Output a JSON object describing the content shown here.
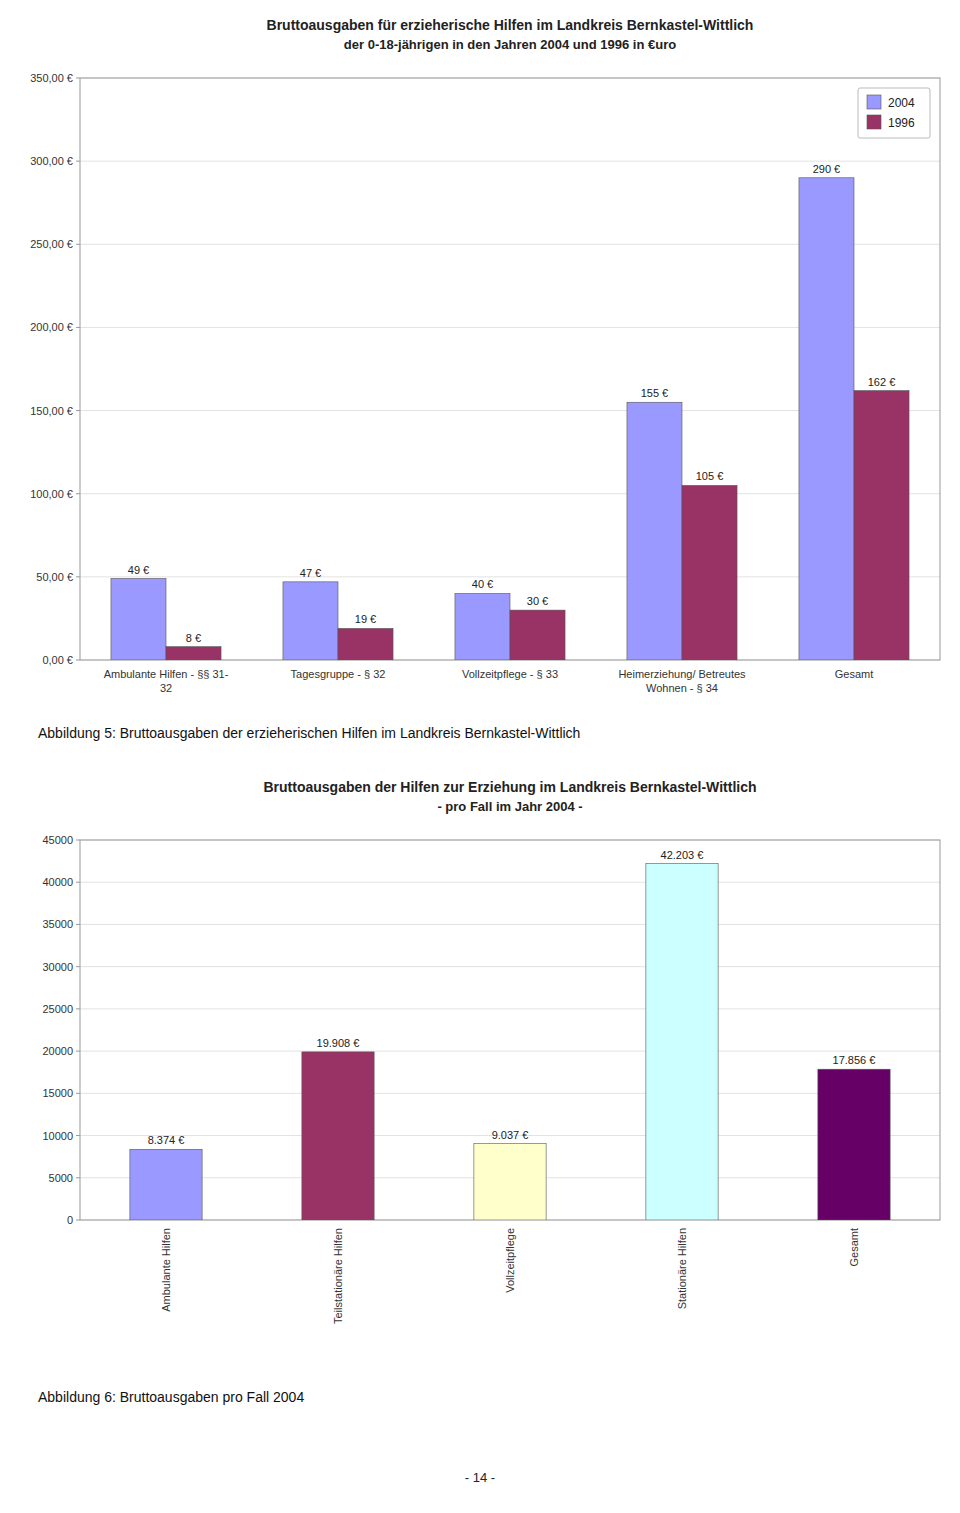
{
  "chart_data": [
    {
      "type": "bar",
      "title": "Bruttoausgaben für erzieherische Hilfen im Landkreis Bernkastel-Wittlich",
      "subtitle": "der 0-18-jährigen in den Jahren 2004 und 1996 in €uro",
      "categories": [
        "Ambulante Hilfen - §§ 31-\n32",
        "Tagesgruppe - § 32",
        "Vollzeitpflege - § 33",
        "Heimerziehung/ Betreutes\nWohnen - § 34",
        "Gesamt"
      ],
      "series": [
        {
          "name": "2004",
          "color": "#9999FF",
          "values": [
            49,
            47,
            40,
            155,
            290
          ],
          "value_labels": [
            "49 €",
            "47 €",
            "40 €",
            "155 €",
            "290 €"
          ]
        },
        {
          "name": "1996",
          "color": "#993366",
          "values": [
            8,
            19,
            30,
            105,
            162
          ],
          "value_labels": [
            "8 €",
            "19 €",
            "30 €",
            "105 €",
            "162 €"
          ]
        }
      ],
      "ylim": [
        0,
        350
      ],
      "yticks": [
        {
          "value": 0,
          "label": "0,00 €"
        },
        {
          "value": 50,
          "label": "50,00 €"
        },
        {
          "value": 100,
          "label": "100,00 €"
        },
        {
          "value": 150,
          "label": "150,00 €"
        },
        {
          "value": 200,
          "label": "200,00 €"
        },
        {
          "value": 250,
          "label": "250,00 €"
        },
        {
          "value": 300,
          "label": "300,00 €"
        },
        {
          "value": 350,
          "label": "350,00 €"
        }
      ],
      "grid": true,
      "legend": "upper right",
      "data_labels": true,
      "caption": "Abbildung 5: Bruttoausgaben der erzieherischen Hilfen im Landkreis Bernkastel-Wittlich"
    },
    {
      "type": "bar",
      "title": "Bruttoausgaben der Hilfen zur Erziehung im Landkreis Bernkastel-Wittlich",
      "subtitle": "- pro Fall im Jahr 2004 -",
      "categories": [
        "Ambulante Hilfen",
        "Teilstationäre Hilfen",
        "Vollzeitpflege",
        "Stationäre Hilfen",
        "Gesamt"
      ],
      "values": [
        8374,
        19908,
        9037,
        42203,
        17856
      ],
      "value_labels": [
        "8.374 €",
        "19.908 €",
        "9.037 €",
        "42.203 €",
        "17.856 €"
      ],
      "colors": [
        "#9999FF",
        "#993366",
        "#FFFFCC",
        "#CCFFFF",
        "#660066"
      ],
      "ylim": [
        0,
        45000
      ],
      "yticks": [
        0,
        5000,
        10000,
        15000,
        20000,
        25000,
        30000,
        35000,
        40000,
        45000
      ],
      "grid": true,
      "data_labels": true,
      "caption": "Abbildung 6: Bruttoausgaben pro Fall 2004"
    }
  ],
  "page_number": "- 14 -"
}
